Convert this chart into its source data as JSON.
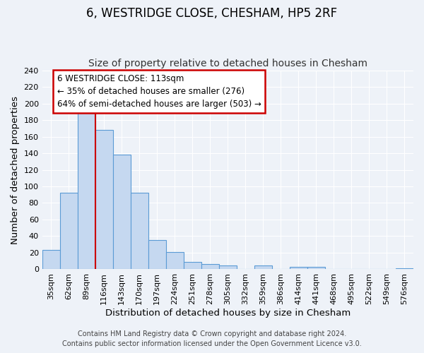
{
  "title": "6, WESTRIDGE CLOSE, CHESHAM, HP5 2RF",
  "subtitle": "Size of property relative to detached houses in Chesham",
  "xlabel": "Distribution of detached houses by size in Chesham",
  "ylabel": "Number of detached properties",
  "bar_labels": [
    "35sqm",
    "62sqm",
    "89sqm",
    "116sqm",
    "143sqm",
    "170sqm",
    "197sqm",
    "224sqm",
    "251sqm",
    "278sqm",
    "305sqm",
    "332sqm",
    "359sqm",
    "386sqm",
    "414sqm",
    "441sqm",
    "468sqm",
    "495sqm",
    "522sqm",
    "549sqm",
    "576sqm"
  ],
  "bar_values": [
    23,
    92,
    190,
    168,
    138,
    92,
    35,
    21,
    9,
    6,
    5,
    0,
    5,
    0,
    3,
    3,
    0,
    0,
    0,
    0,
    1
  ],
  "bar_color": "#c5d8f0",
  "bar_edge_color": "#5b9bd5",
  "property_line_label": "6 WESTRIDGE CLOSE: 113sqm",
  "annotation_line1": "← 35% of detached houses are smaller (276)",
  "annotation_line2": "64% of semi-detached houses are larger (503) →",
  "annotation_box_color": "white",
  "annotation_box_edge": "#cc0000",
  "vline_color": "#cc0000",
  "vline_x": 2.5,
  "ylim": [
    0,
    240
  ],
  "yticks": [
    0,
    20,
    40,
    60,
    80,
    100,
    120,
    140,
    160,
    180,
    200,
    220,
    240
  ],
  "footer_line1": "Contains HM Land Registry data © Crown copyright and database right 2024.",
  "footer_line2": "Contains public sector information licensed under the Open Government Licence v3.0.",
  "background_color": "#eef2f8",
  "grid_color": "#ffffff",
  "title_fontsize": 12,
  "subtitle_fontsize": 10,
  "axis_label_fontsize": 9.5,
  "tick_fontsize": 8,
  "footer_fontsize": 7,
  "ann_fontsize": 8.5
}
